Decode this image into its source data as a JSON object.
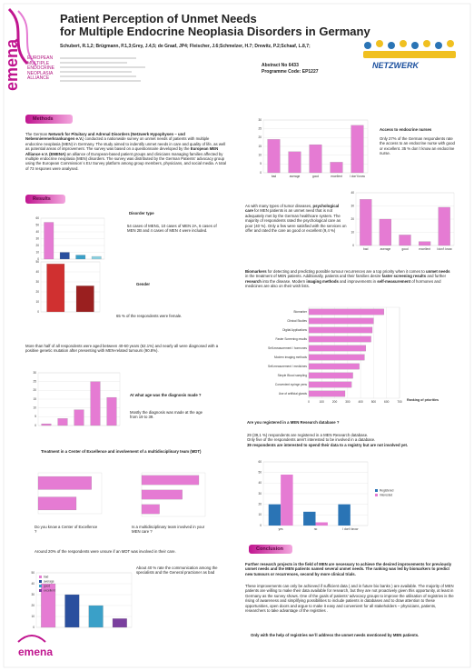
{
  "header": {
    "logo": "emena",
    "alliance": [
      "EUROPEAN",
      "MULTIPLE",
      "ENDOCRINE",
      "NEOPLASIA",
      "ALLIANCE"
    ],
    "title": [
      "Patient Perception of Unmet Needs",
      "for Multiple Endocrine Neoplasia Disorders in Germany"
    ],
    "authors": "Schubert, R.1,2; Brügmann, P.1,3;Grey, J.4,5; de Graaf, JP4; Fleischer, J.6;Schmelzer, H.7; Drewitz, P.2;Schaaf, L.8,7;",
    "abstract_no": "Abstract No 6433",
    "programme_code": "Programme Code: EP1227",
    "netzwerk": "NETZWERK"
  },
  "methods": {
    "heading": "Methods",
    "text": [
      "The German ",
      "Network for Pituitary and Adrenal Disorders (Netzwerk Hypophysen – und Nebennierenerkrankungen e.V.",
      ") conducted a nationwide survey on unmet needs of patients with multiple endocrine neoplasia (MEN) in Germany. The study aimed to indentify unmet needs in care and quality of life, as well as potential areas of improvement. The survey was based on a questionnaire developed by the ",
      "European MEN Alliance e.V. (EMENA)",
      " an alliance of European-based patient groups and clinicians managing families affected by multiple endocrine neoplasia (MEN) disorders. The survey was distributed by the German Patients' advocacy group using the European Commission´s EU Survey platform among group members, physicians, and social media. A total of 73 respones were analysed."
    ]
  },
  "results": {
    "heading": "Results",
    "disorder_title": "Disorder type",
    "disorder_text": "54 cases of MEN1, 10 cases of MEN 2A, 6 cases of MEN 2B and 4 cases of MEN 4 were included.",
    "gender_title": "Gender",
    "gender_text": "65 % of the respondents were female.",
    "age_text": "More than half of all respondents were aged between 40-60 years (62.1%) and nearly all were diagnosed with a positive genetic mutation after presenting with MEN-related tumours (90.8%).",
    "age_title": "At what age was the diagnosis made ?",
    "age_caption": "Mostly the diagnosis was made at the age from 19 to 39.",
    "mdt_title": "Treatment in a Center of Excellence and involvement of a multidisciplinary team (MDT)",
    "coe_caption": "Do you know a Center of Excellence ?",
    "mdt_caption": "Is a multidisciplinary team involved in your MEN care ?",
    "mdt_note": "Around 20% of the respondents were unsure if an MDT was involved in their care.",
    "comm_text": "About 40 % rate the communication among the specialists and the General practioner as bad"
  },
  "right": {
    "nurses_title": "Access to endocrine nurses",
    "nurses_text": "Only 27% of the German respondents rate the access to an endocrine nurse with good or excellent. 35 % don´t know an endocrine nurse.",
    "psych_text": [
      "As with many types of tumor diseases, ",
      "psychological care",
      " for MEN patients is an unmet need that is not adequately met by the German healthcare system. The majority of respondents rated the psychological care as poor (40 %). Only a few were satisfied with the services on offer and rated the care as good or excellent (9,4 %)"
    ],
    "biomarker_text": [
      "Biomarkers",
      " for detecting and predicting possible tumour recurrences are a top priority when it comes to ",
      "unmet needs",
      " in the treatment of MEN patients. Additionally, patients and their families desire ",
      "faster screening results",
      " and further ",
      "research",
      " into the disease. Modern ",
      "imaging methods",
      " and improvements in ",
      "self-measurement",
      " of hormones and medicines are also on their wish lists."
    ],
    "registry_title": "Are you registered in a MEN Research database ?",
    "registry_text": [
      "29 (39,1 %) respondents are registered in a MEN Research database.",
      "Only five of the respondents aren't interested to be involved in a database.",
      "39 respondents are interested to spend their data to a registry but are not involved yet."
    ]
  },
  "conclusion": {
    "heading": "Conclusion",
    "p1": "Further research projects in the field of MEN are necessary to achieve the desired improvements for previously unmet needs and the MEN patients named several unmet needs. The ranking was led by biomarkers to predict new tumours or recurrences, second by more clinical trials.",
    "p2": "These improvements can only be achieved if sufficient data ( and in future bio banks ) are available. The majority of MEN patients are willing to make their data available for research, but they are not proactively given this opportunity, at least in Germany as the survey shows. One of the goals of patients' advocacy groups to improve the utilisation of registries is the rising of awareness and simplifying possibilities to include patients in databases and to draw attention to these opportunities, open doors and argue to make it easy and convenient for all stakeholders – physicians, patients, researchers to take advantage of the registries .",
    "final": "Only with the help of registries we´ll address the unmet needs mentioned by MEN patients."
  },
  "footer_logo": "emena",
  "charts": [
    {
      "type": "bar",
      "categories": [
        "bad",
        "average",
        "good",
        "excellent",
        "I don't know"
      ],
      "values": [
        19,
        12,
        16,
        6,
        27
      ],
      "color": "#e57bd3",
      "ylim": [
        0,
        30
      ],
      "yticks": [
        0,
        5,
        10,
        15,
        20,
        25,
        30
      ],
      "grid": true
    },
    {
      "type": "bar",
      "categories": [
        "bad",
        "average",
        "good",
        "excellent",
        "I don't know"
      ],
      "values": [
        35,
        20,
        8,
        3,
        29
      ],
      "color": "#e57bd3",
      "ylim": [
        0,
        40
      ],
      "yticks": [
        0,
        10,
        20,
        30,
        40
      ],
      "grid": true
    },
    {
      "type": "hbar",
      "categories": [
        "Biomarker",
        "Clinical Studies",
        "Digital Applications",
        "Faster Screening results",
        "Self-measurement / hormones",
        "Modern imaging methods",
        "Self-measurement / medicines",
        "Simple Blood sampling",
        "Convenient syringe pens",
        "Use of artificial glands"
      ],
      "values": [
        580,
        500,
        490,
        480,
        440,
        430,
        390,
        340,
        330,
        280
      ],
      "color": "#e57bd3",
      "xlim": [
        0,
        700
      ],
      "xticks": [
        0,
        100,
        200,
        300,
        400,
        500,
        600,
        700
      ],
      "grid": true,
      "legend_label": "Ranking of priorities"
    },
    {
      "type": "grouped",
      "categories": [
        "yes",
        "no",
        "I don't know"
      ],
      "series": [
        {
          "name": "Registered",
          "color": "#2a74b5",
          "values": [
            20,
            13,
            20
          ]
        },
        {
          "name": "Interested",
          "color": "#e57bd3",
          "values": [
            48,
            3,
            0
          ]
        }
      ],
      "ylim": [
        0,
        60
      ],
      "yticks": [
        0,
        10,
        20,
        30,
        40,
        50,
        60
      ],
      "grid": true
    },
    {
      "type": "bar",
      "categories": [
        null,
        null,
        null,
        null
      ],
      "values": [
        54,
        10,
        6,
        4
      ],
      "colors": [
        "#e57bd3",
        "#2a4f9e",
        "#3aa0c8",
        "#8ad0e0"
      ],
      "ylim": [
        0,
        60
      ],
      "yticks": [
        0,
        10,
        20,
        30,
        40,
        50,
        60
      ],
      "grid": true
    },
    {
      "type": "bar",
      "categories": [
        null,
        null
      ],
      "values": [
        48,
        26
      ],
      "colors": [
        "#d03030",
        "#9a1f1f"
      ],
      "ylim": [
        0,
        50
      ],
      "yticks": [
        0,
        10,
        20,
        30,
        40,
        50
      ],
      "grid": true
    },
    {
      "type": "bar",
      "categories": [
        null,
        null,
        null,
        null,
        null
      ],
      "values": [
        1,
        4,
        9,
        25,
        16
      ],
      "color": "#e57bd3",
      "ylim": [
        0,
        30
      ],
      "yticks": [
        0,
        5,
        10,
        15,
        20,
        25,
        30
      ],
      "grid": true
    },
    {
      "type": "hbar",
      "categories": [
        null,
        null
      ],
      "values": [
        42,
        30
      ],
      "color": "#e57bd3",
      "xlim": [
        0,
        50
      ],
      "xticks": [],
      "grid": false
    },
    {
      "type": "hbar",
      "categories": [
        null,
        null,
        null
      ],
      "values": [
        45,
        32,
        14
      ],
      "color": "#e57bd3",
      "xlim": [
        0,
        50
      ],
      "xticks": [],
      "grid": false
    },
    {
      "type": "bar",
      "categories": [
        "bad",
        "average",
        "good",
        "excellent"
      ],
      "values": [
        40,
        30,
        20,
        8
      ],
      "colors": [
        "#e57bd3",
        "#2a4f9e",
        "#3aa0c8",
        "#7a3f9e"
      ],
      "ylim": [
        0,
        50
      ],
      "yticks": [
        0,
        10,
        20,
        30,
        40,
        50
      ],
      "grid": true,
      "legend": true
    }
  ]
}
